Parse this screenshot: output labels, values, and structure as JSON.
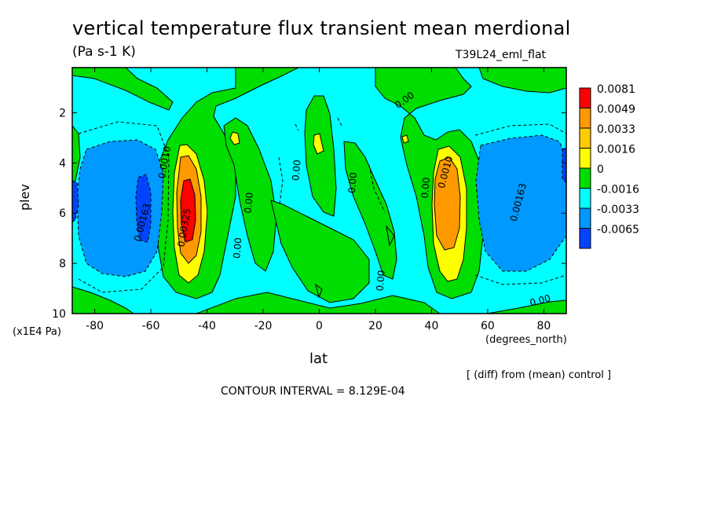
{
  "header": {
    "title": "vertical temperature flux transient mean merdional",
    "units": "(Pa s-1 K)",
    "run": "T39L24_eml_flat",
    "diff_note": "[ (diff) from (mean) control ]",
    "contour_interval": "CONTOUR INTERVAL = 8.129E-04"
  },
  "chart_data": {
    "type": "heatmap",
    "xlabel": "lat",
    "ylabel": "plev",
    "x_unit": "(degrees_north)",
    "y_unit": "(x1E4 Pa)",
    "xlim": [
      -88,
      88
    ],
    "ylim": [
      10,
      0.2
    ],
    "x_ticks": [
      "-80",
      "-60",
      "-40",
      "-20",
      "0",
      "20",
      "40",
      "60",
      "80"
    ],
    "x_tick_values": [
      -80,
      -60,
      -40,
      -20,
      0,
      20,
      40,
      60,
      80
    ],
    "y_ticks": [
      "2",
      "4",
      "6",
      "8",
      "10"
    ],
    "y_tick_values": [
      2,
      4,
      6,
      8,
      10
    ],
    "contour_interval": 0.0008129,
    "levels": [
      "0.0081",
      "0.0049",
      "0.0033",
      "0.0016",
      "0",
      "-0.0016",
      "-0.0033",
      "-0.0065"
    ],
    "level_colors": [
      "#ff0000",
      "#ff9900",
      "#ffcc00",
      "#ffff00",
      "#00dd00",
      "#00ffff",
      "#0099ff",
      "#0044ff"
    ],
    "contour_labels": [
      {
        "text": "0.00",
        "lat": 31,
        "plev": 1.6,
        "angle": -35
      },
      {
        "text": "0.00163",
        "lat": -62,
        "plev": 6.4,
        "angle": -75
      },
      {
        "text": "0.0010",
        "lat": -54,
        "plev": 4.0,
        "angle": -80
      },
      {
        "text": "0.00325",
        "lat": -47,
        "plev": 6.6,
        "angle": -80
      },
      {
        "text": "0.00",
        "lat": -24,
        "plev": 5.6,
        "angle": -85
      },
      {
        "text": "0.00",
        "lat": -28,
        "plev": 7.4,
        "angle": -85
      },
      {
        "text": "0.00",
        "lat": -7,
        "plev": 4.3,
        "angle": -85
      },
      {
        "text": "0.00",
        "lat": 13,
        "plev": 4.8,
        "angle": -85
      },
      {
        "text": "0.00",
        "lat": 23,
        "plev": 8.7,
        "angle": -85
      },
      {
        "text": "0.00",
        "lat": 39,
        "plev": 5.0,
        "angle": -85
      },
      {
        "text": "0.0010",
        "lat": 46,
        "plev": 4.4,
        "angle": -75
      },
      {
        "text": "0.00163",
        "lat": 72,
        "plev": 5.6,
        "angle": -75
      },
      {
        "text": "0.00",
        "lat": 79,
        "plev": 9.6,
        "angle": -15
      }
    ]
  }
}
